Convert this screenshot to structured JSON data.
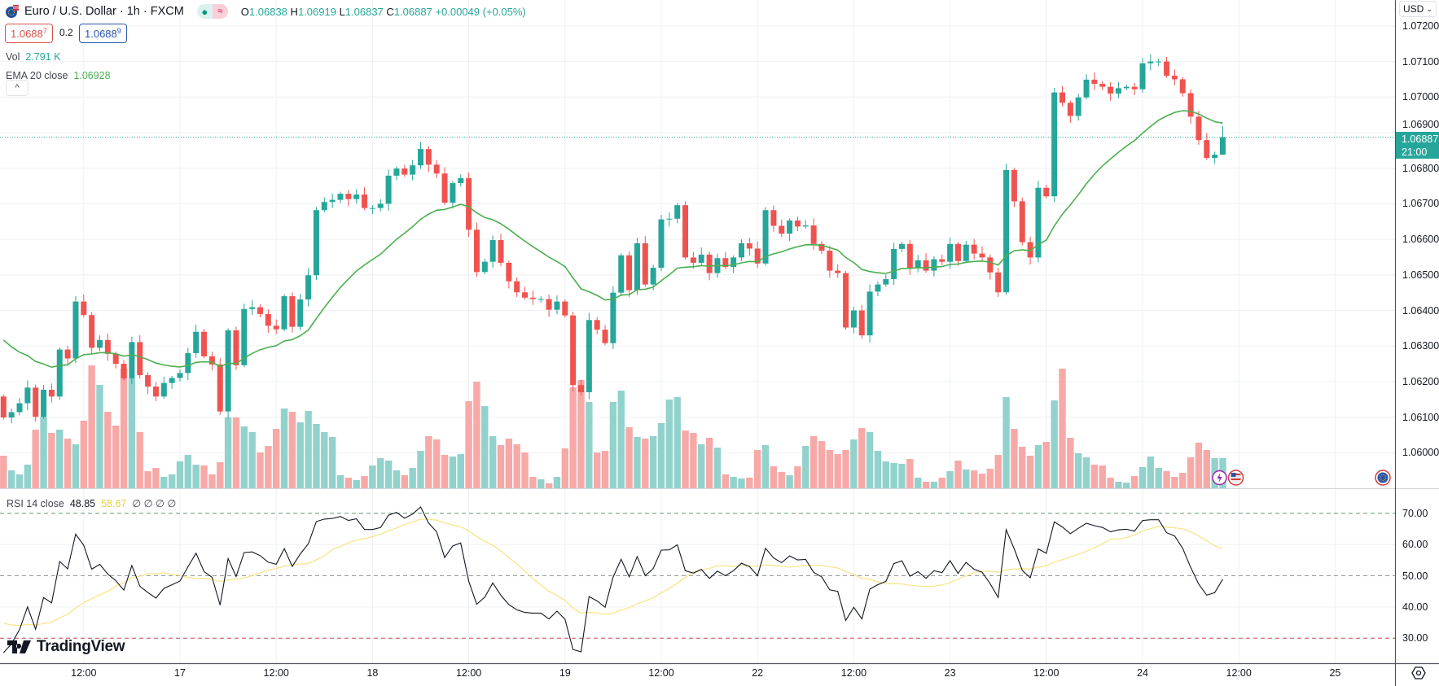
{
  "header": {
    "symbol_title": "Euro / U.S. Dollar · 1h · FXCM",
    "market_open_icon": "green-dot",
    "delay_icon": "≈",
    "ohlc": {
      "o_label": "O",
      "o": "1.06838",
      "h_label": "H",
      "h": "1.06919",
      "l_label": "L",
      "l": "1.06837",
      "c_label": "C",
      "c": "1.06887",
      "change": "+0.00049 (+0.05%)"
    }
  },
  "quote": {
    "bid": "1.0688",
    "bid_pip": "7",
    "spread": "0.2",
    "ask": "1.0688",
    "ask_pip": "9"
  },
  "indicators": {
    "vol_label": "Vol",
    "vol_value": "2.791 K",
    "ema_label": "EMA 20 close",
    "ema_value": "1.06928",
    "collapse_icon": "^"
  },
  "price_axis": {
    "currency": "USD",
    "labels": [
      "1.07200",
      "1.07100",
      "1.07000",
      "1.06900",
      "1.06800",
      "1.06700",
      "1.06600",
      "1.06500",
      "1.06400",
      "1.06300",
      "1.06200",
      "1.06100",
      "1.06000"
    ],
    "current_price": "1.06887",
    "countdown": "21:00"
  },
  "rsi_legend": {
    "label": "RSI 14 close",
    "value": "48.85",
    "ma_value": "58.67",
    "extras": [
      "∅",
      "∅",
      "∅",
      "∅"
    ]
  },
  "rsi_axis": {
    "labels": [
      "70.00",
      "60.00",
      "50.00",
      "40.00",
      "30.00"
    ]
  },
  "time_axis": {
    "labels": [
      "12:00",
      "17",
      "12:00",
      "18",
      "12:00",
      "19",
      "12:00",
      "22",
      "12:00",
      "23",
      "12:00",
      "24",
      "12:00",
      "25"
    ]
  },
  "brand": "TradingView",
  "colors": {
    "up": "#26a69a",
    "down": "#ef5350",
    "vol_up": "#92d2cc",
    "vol_down": "#f7a9a7",
    "ema": "#4caf50",
    "rsi": "#131722",
    "rsi_ma": "#f7e68a",
    "grid": "#eef0f4"
  },
  "chart_data": {
    "type": "candlestick",
    "timeframe": "1h",
    "first_open": 1.06158,
    "closes": [
      1.06099,
      1.06114,
      1.06139,
      1.06183,
      1.06101,
      1.06177,
      1.06158,
      1.0629,
      1.06265,
      1.06425,
      1.06387,
      1.06295,
      1.06317,
      1.06278,
      1.0625,
      1.06209,
      1.06311,
      1.06218,
      1.06186,
      1.06158,
      1.06196,
      1.0621,
      1.06224,
      1.0628,
      1.0634,
      1.06271,
      1.06248,
      1.06116,
      1.06344,
      1.06246,
      1.06404,
      1.06409,
      1.0639,
      1.06357,
      1.06347,
      1.0644,
      1.06354,
      1.06431,
      1.06499,
      1.06682,
      1.06705,
      1.06711,
      1.06728,
      1.06713,
      1.06726,
      1.06688,
      1.06688,
      1.067,
      1.06779,
      1.06799,
      1.06782,
      1.06808,
      1.06854,
      1.0681,
      1.06785,
      1.06703,
      1.06758,
      1.06772,
      1.06627,
      1.06508,
      1.06537,
      1.06598,
      1.06534,
      1.06482,
      1.06451,
      1.06436,
      1.06432,
      1.06432,
      1.06402,
      1.06425,
      1.06386,
      1.0619,
      1.0617,
      1.06373,
      1.06346,
      1.06308,
      1.0645,
      1.06555,
      1.06457,
      1.06589,
      1.06473,
      1.0652,
      1.06656,
      1.06658,
      1.06696,
      1.06549,
      1.06534,
      1.06557,
      1.06505,
      1.06547,
      1.06522,
      1.06549,
      1.06589,
      1.06574,
      1.06532,
      1.06682,
      1.06638,
      1.06616,
      1.06653,
      1.06636,
      1.06639,
      1.06587,
      1.06568,
      1.06512,
      1.06505,
      1.06352,
      1.064,
      1.0633,
      1.06453,
      1.06473,
      1.06488,
      1.06573,
      1.06587,
      1.0652,
      1.06541,
      1.06512,
      1.06544,
      1.06537,
      1.06587,
      1.06539,
      1.06585,
      1.0656,
      1.06549,
      1.06507,
      1.06451,
      1.06795,
      1.06707,
      1.06592,
      1.06549,
      1.06745,
      1.06721,
      1.07013,
      1.06984,
      1.06947,
      1.06999,
      1.07049,
      1.07037,
      1.07029,
      1.0701,
      1.07025,
      1.07029,
      1.07022,
      1.07095,
      1.071,
      1.071,
      1.0706,
      1.0705,
      1.07011,
      1.06945,
      1.06879,
      1.06829,
      1.06838,
      1.06887
    ],
    "last_bar": {
      "open": 1.06838,
      "high": 1.06919,
      "low": 1.06837,
      "close": 1.06887
    },
    "volumes_relative": [
      40,
      22,
      17,
      29,
      72,
      88,
      68,
      72,
      61,
      54,
      83,
      151,
      127,
      94,
      77,
      147,
      135,
      69,
      21,
      25,
      14,
      17,
      33,
      41,
      29,
      28,
      17,
      32,
      87,
      87,
      76,
      69,
      44,
      52,
      73,
      98,
      94,
      81,
      95,
      79,
      69,
      63,
      16,
      13,
      10,
      15,
      28,
      37,
      34,
      22,
      16,
      25,
      46,
      64,
      60,
      41,
      39,
      42,
      107,
      131,
      101,
      64,
      53,
      61,
      54,
      44,
      14,
      11,
      6,
      14,
      49,
      124,
      133,
      106,
      44,
      46,
      106,
      120,
      75,
      63,
      61,
      64,
      80,
      109,
      112,
      71,
      68,
      54,
      62,
      50,
      17,
      14,
      12,
      13,
      47,
      53,
      27,
      20,
      16,
      27,
      52,
      64,
      58,
      47,
      42,
      47,
      60,
      74,
      69,
      46,
      33,
      31,
      30,
      36,
      13,
      8,
      8,
      13,
      21,
      34,
      23,
      22,
      18,
      24,
      41,
      112,
      73,
      51,
      40,
      53,
      57,
      108,
      147,
      62,
      43,
      38,
      29,
      28,
      13,
      8,
      7,
      15,
      26,
      39,
      25,
      21,
      14,
      19,
      38,
      56,
      47,
      37,
      37
    ],
    "ema_period": 20,
    "ema_initial": 1.0634,
    "rsi_period": 14,
    "rsi_seed": {
      "avg_gain": 8e-05,
      "avg_loss": 0.00019,
      "ma_seed": 35.5
    },
    "rsi_ma_period": 14,
    "rsi_levels": [
      70,
      50,
      30
    ],
    "price_ylim": [
      1.059,
      1.07273
    ],
    "rsi_ylim": [
      22,
      78
    ]
  }
}
